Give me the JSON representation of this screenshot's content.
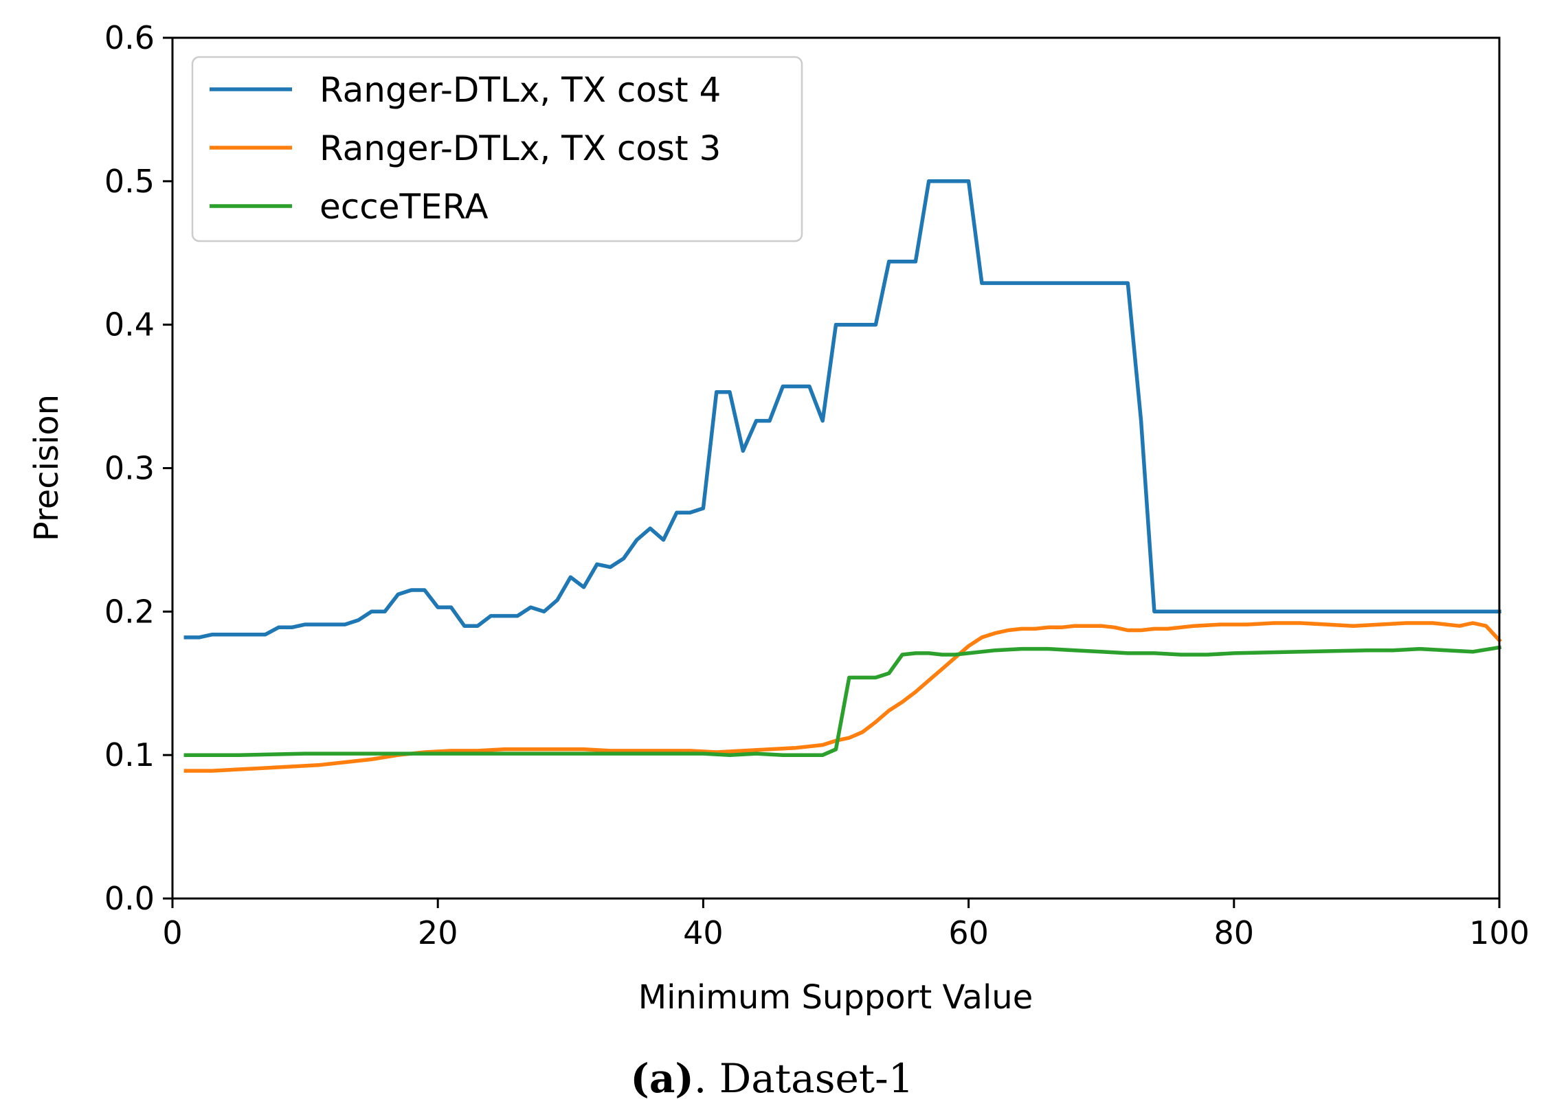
{
  "chart_data": {
    "type": "line",
    "title": "",
    "xlabel": "Minimum Support Value",
    "ylabel": "Precision",
    "xlim": [
      0,
      100
    ],
    "ylim": [
      0.0,
      0.6
    ],
    "xticks": [
      0,
      20,
      40,
      60,
      80,
      100
    ],
    "yticks": [
      0.0,
      0.1,
      0.2,
      0.3,
      0.4,
      0.5,
      0.6
    ],
    "xtick_labels": [
      "0",
      "20",
      "40",
      "60",
      "80",
      "100"
    ],
    "ytick_labels": [
      "0.0",
      "0.1",
      "0.2",
      "0.3",
      "0.4",
      "0.5",
      "0.6"
    ],
    "legend_position": "top-left",
    "grid": false,
    "series": [
      {
        "name": "Ranger-DTLx, TX cost 4",
        "color": "#1f77b4",
        "x": [
          1,
          2,
          3,
          4,
          5,
          6,
          7,
          8,
          9,
          10,
          11,
          12,
          13,
          14,
          15,
          16,
          17,
          18,
          19,
          20,
          21,
          22,
          23,
          24,
          25,
          26,
          27,
          28,
          29,
          30,
          31,
          32,
          33,
          34,
          35,
          36,
          37,
          38,
          39,
          40,
          41,
          42,
          43,
          44,
          45,
          46,
          47,
          48,
          49,
          50,
          51,
          52,
          53,
          54,
          55,
          56,
          57,
          58,
          59,
          60,
          61,
          62,
          63,
          64,
          65,
          66,
          67,
          68,
          69,
          70,
          71,
          72,
          73,
          74,
          75,
          80,
          85,
          90,
          95,
          100
        ],
        "y": [
          0.182,
          0.182,
          0.184,
          0.184,
          0.184,
          0.184,
          0.184,
          0.189,
          0.189,
          0.191,
          0.191,
          0.191,
          0.191,
          0.194,
          0.2,
          0.2,
          0.212,
          0.215,
          0.215,
          0.203,
          0.203,
          0.19,
          0.19,
          0.197,
          0.197,
          0.197,
          0.203,
          0.2,
          0.208,
          0.224,
          0.217,
          0.233,
          0.231,
          0.237,
          0.25,
          0.258,
          0.25,
          0.269,
          0.269,
          0.272,
          0.353,
          0.353,
          0.312,
          0.333,
          0.333,
          0.357,
          0.357,
          0.357,
          0.333,
          0.4,
          0.4,
          0.4,
          0.4,
          0.444,
          0.444,
          0.444,
          0.5,
          0.5,
          0.5,
          0.5,
          0.429,
          0.429,
          0.429,
          0.429,
          0.429,
          0.429,
          0.429,
          0.429,
          0.429,
          0.429,
          0.429,
          0.429,
          0.333,
          0.2,
          0.2,
          0.2,
          0.2,
          0.2,
          0.2,
          0.2
        ]
      },
      {
        "name": "Ranger-DTLx, TX cost 3",
        "color": "#ff7f0e",
        "x": [
          1,
          3,
          5,
          7,
          9,
          11,
          13,
          15,
          17,
          19,
          21,
          23,
          25,
          27,
          29,
          31,
          33,
          35,
          37,
          39,
          41,
          43,
          45,
          47,
          49,
          50,
          51,
          52,
          53,
          54,
          55,
          56,
          57,
          58,
          59,
          60,
          61,
          62,
          63,
          64,
          65,
          66,
          67,
          68,
          69,
          70,
          71,
          72,
          73,
          74,
          75,
          77,
          79,
          81,
          83,
          85,
          87,
          89,
          91,
          93,
          95,
          97,
          98,
          99,
          100
        ],
        "y": [
          0.089,
          0.089,
          0.09,
          0.091,
          0.092,
          0.093,
          0.095,
          0.097,
          0.1,
          0.102,
          0.103,
          0.103,
          0.104,
          0.104,
          0.104,
          0.104,
          0.103,
          0.103,
          0.103,
          0.103,
          0.102,
          0.103,
          0.104,
          0.105,
          0.107,
          0.11,
          0.112,
          0.116,
          0.123,
          0.131,
          0.137,
          0.144,
          0.152,
          0.16,
          0.168,
          0.176,
          0.182,
          0.185,
          0.187,
          0.188,
          0.188,
          0.189,
          0.189,
          0.19,
          0.19,
          0.19,
          0.189,
          0.187,
          0.187,
          0.188,
          0.188,
          0.19,
          0.191,
          0.191,
          0.192,
          0.192,
          0.191,
          0.19,
          0.191,
          0.192,
          0.192,
          0.19,
          0.192,
          0.19,
          0.18
        ]
      },
      {
        "name": "ecceTERA",
        "color": "#2ca02c",
        "x": [
          1,
          5,
          10,
          20,
          30,
          40,
          42,
          44,
          46,
          48,
          49,
          50,
          51,
          52,
          53,
          54,
          55,
          56,
          57,
          58,
          59,
          60,
          62,
          64,
          66,
          68,
          70,
          72,
          74,
          76,
          78,
          80,
          85,
          90,
          92,
          94,
          96,
          98,
          100
        ],
        "y": [
          0.1,
          0.1,
          0.101,
          0.101,
          0.101,
          0.101,
          0.1,
          0.101,
          0.1,
          0.1,
          0.1,
          0.104,
          0.154,
          0.154,
          0.154,
          0.157,
          0.17,
          0.171,
          0.171,
          0.17,
          0.17,
          0.171,
          0.173,
          0.174,
          0.174,
          0.173,
          0.172,
          0.171,
          0.171,
          0.17,
          0.17,
          0.171,
          0.172,
          0.173,
          0.173,
          0.174,
          0.173,
          0.172,
          0.175
        ]
      }
    ]
  },
  "caption": {
    "label": "(a)",
    "text": ". Dataset-1"
  }
}
